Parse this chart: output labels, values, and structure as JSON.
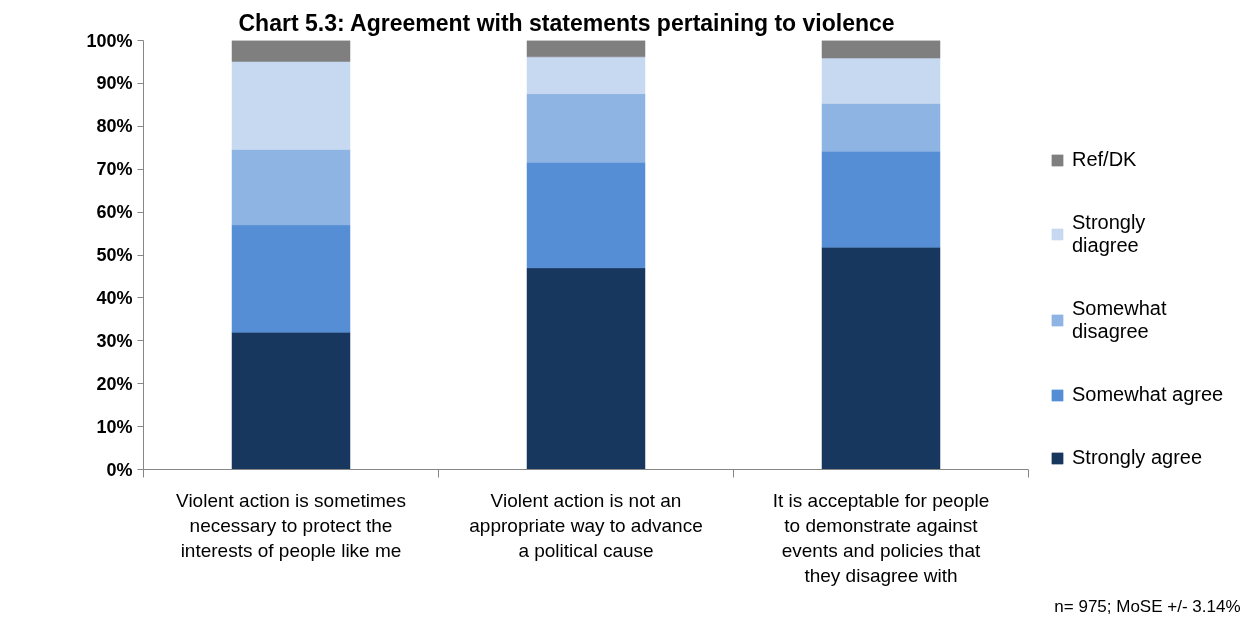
{
  "chart_data": {
    "type": "bar",
    "title": "Chart 5.3: Agreement with statements pertaining to violence",
    "categories": [
      "Violent action is sometimes necessary to protect the interests of people like me",
      "Violent action is not an appropriate way to advance a political cause",
      "It is acceptable for people to demonstrate against events and policies that they disagree with"
    ],
    "stacked": true,
    "series": [
      {
        "name": "Strongly agree",
        "color": "#17375e",
        "values": [
          32.0,
          47.0,
          51.8
        ]
      },
      {
        "name": "Somewhat agree",
        "color": "#558ed5",
        "values": [
          25.0,
          24.6,
          22.4
        ]
      },
      {
        "name": "Somewhat disagree",
        "color": "#8eb4e3",
        "values": [
          17.6,
          16.0,
          11.1
        ]
      },
      {
        "name": "Strongly diagree",
        "color": "#c6d9f1",
        "values": [
          20.5,
          8.6,
          10.6
        ]
      },
      {
        "name": "Ref/DK",
        "color": "#7f7f7f",
        "values": [
          4.9,
          3.8,
          4.1
        ]
      }
    ],
    "ylim": [
      0,
      100
    ],
    "yticks": [
      {
        "value": 0,
        "label": "0%"
      },
      {
        "value": 10,
        "label": "10%"
      },
      {
        "value": 20,
        "label": "20%"
      },
      {
        "value": 30,
        "label": "30%"
      },
      {
        "value": 40,
        "label": "40%"
      },
      {
        "value": 50,
        "label": "50%"
      },
      {
        "value": 60,
        "label": "60%"
      },
      {
        "value": 70,
        "label": "70%"
      },
      {
        "value": 80,
        "label": "80%"
      },
      {
        "value": 90,
        "label": "90%"
      },
      {
        "value": 100,
        "label": "100%"
      }
    ],
    "legend": "right",
    "annotations": [
      "n= 975; MoSE +/- 3.14%"
    ]
  }
}
